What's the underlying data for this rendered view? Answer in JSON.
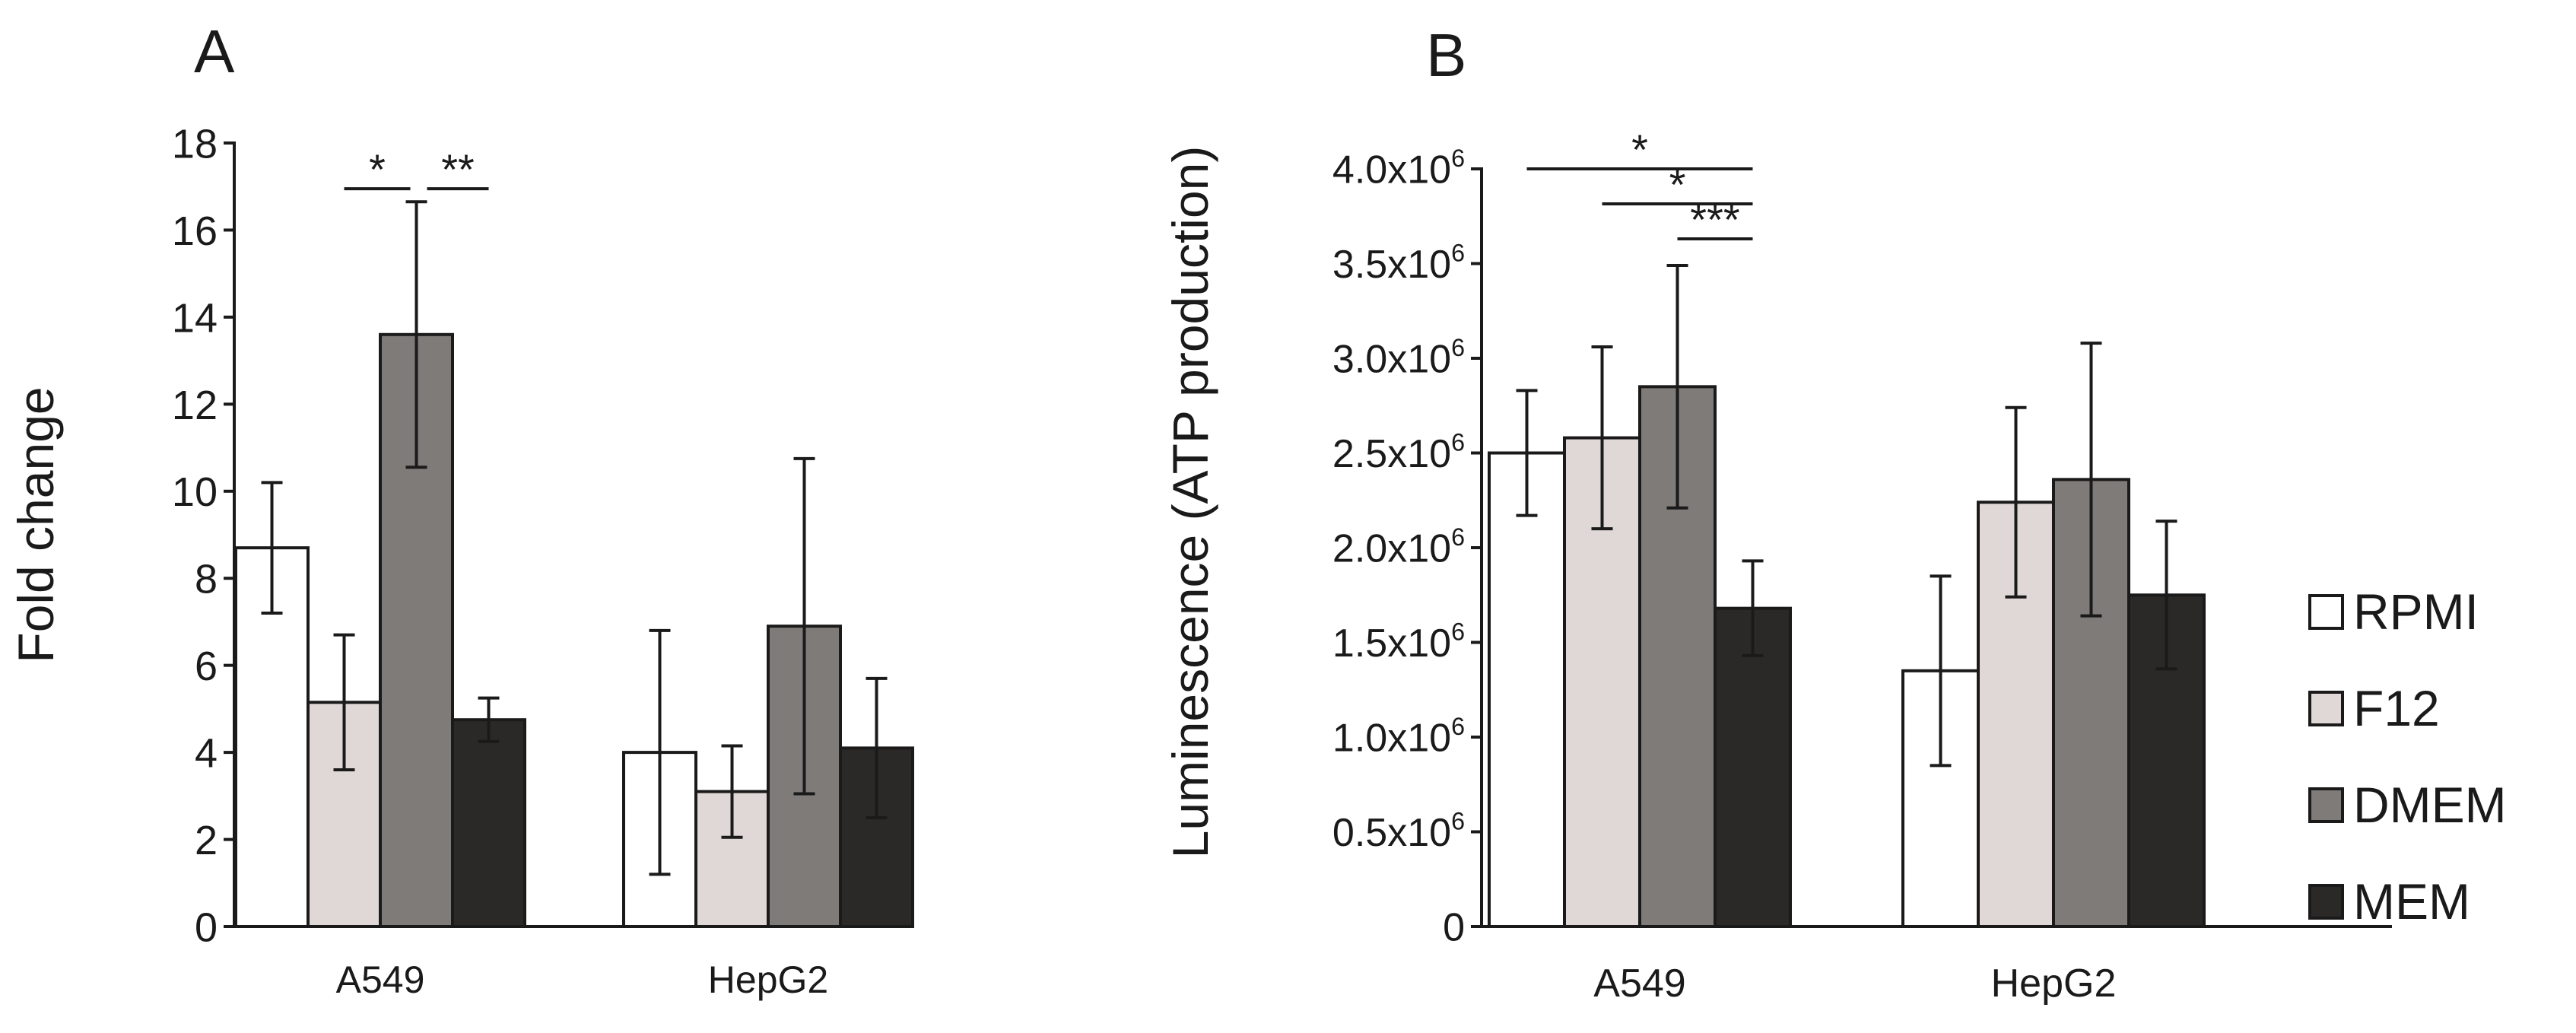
{
  "chart_data": [
    {
      "panel": "A",
      "type": "bar",
      "ylabel": "Fold change",
      "ylim": [
        0,
        18
      ],
      "yticks": [
        {
          "v": 0,
          "label": "0"
        },
        {
          "v": 2,
          "label": "2"
        },
        {
          "v": 4,
          "label": "4"
        },
        {
          "v": 6,
          "label": "6"
        },
        {
          "v": 8,
          "label": "8"
        },
        {
          "v": 10,
          "label": "10"
        },
        {
          "v": 12,
          "label": "12"
        },
        {
          "v": 14,
          "label": "14"
        },
        {
          "v": 16,
          "label": "16"
        },
        {
          "v": 18,
          "label": "18"
        }
      ],
      "categories": [
        "A549",
        "HepG2"
      ],
      "series": [
        {
          "name": "RPMI",
          "values": [
            8.7,
            4.0
          ],
          "errors": [
            1.5,
            2.8
          ]
        },
        {
          "name": "F12",
          "values": [
            5.15,
            3.1
          ],
          "errors": [
            1.55,
            1.05
          ]
        },
        {
          "name": "DMEM",
          "values": [
            13.6,
            6.9
          ],
          "errors": [
            3.05,
            3.85
          ]
        },
        {
          "name": "MEM",
          "values": [
            4.75,
            4.1
          ],
          "errors": [
            0.5,
            1.6
          ]
        }
      ],
      "significance": [
        {
          "category": 0,
          "from": 1,
          "to": 2,
          "level": 1,
          "label": "*"
        },
        {
          "category": 0,
          "from": 2,
          "to": 3,
          "level": 1,
          "label": "**"
        }
      ]
    },
    {
      "panel": "B",
      "type": "bar",
      "ylabel": "Luminescence (ATP production)",
      "ylim": [
        0,
        4000000
      ],
      "yticks": [
        {
          "v": 0,
          "label": "0"
        },
        {
          "v": 500000,
          "label": "0.5x10",
          "sup": "6"
        },
        {
          "v": 1000000,
          "label": "1.0x10",
          "sup": "6"
        },
        {
          "v": 1500000,
          "label": "1.5x10",
          "sup": "6"
        },
        {
          "v": 2000000,
          "label": "2.0x10",
          "sup": "6"
        },
        {
          "v": 2500000,
          "label": "2.5x10",
          "sup": "6"
        },
        {
          "v": 3000000,
          "label": "3.0x10",
          "sup": "6"
        },
        {
          "v": 3500000,
          "label": "3.5x10",
          "sup": "6"
        },
        {
          "v": 4000000,
          "label": "4.0x10",
          "sup": "6"
        }
      ],
      "categories": [
        "A549",
        "HepG2"
      ],
      "series": [
        {
          "name": "RPMI",
          "values": [
            2500000,
            1350000
          ],
          "errors": [
            330000,
            500000
          ]
        },
        {
          "name": "F12",
          "values": [
            2580000,
            2240000
          ],
          "errors": [
            480000,
            500000
          ]
        },
        {
          "name": "DMEM",
          "values": [
            2850000,
            2360000
          ],
          "errors": [
            640000,
            720000
          ]
        },
        {
          "name": "MEM",
          "values": [
            1680000,
            1750000
          ],
          "errors": [
            250000,
            390000
          ]
        }
      ],
      "significance": [
        {
          "category": 0,
          "from": 0,
          "to": 3,
          "level": 3,
          "label": "*"
        },
        {
          "category": 0,
          "from": 1,
          "to": 3,
          "level": 2,
          "label": "*"
        },
        {
          "category": 0,
          "from": 2,
          "to": 3,
          "level": 1,
          "label": "***"
        }
      ]
    }
  ],
  "legend": {
    "position": "right",
    "entries": [
      "RPMI",
      "F12",
      "DMEM",
      "MEM"
    ]
  },
  "colors": {
    "RPMI": "#ffffff",
    "F12": "#e0d8d6",
    "DMEM": "#7f7b79",
    "MEM": "#2b2927",
    "ink": "#1a1a1a"
  }
}
